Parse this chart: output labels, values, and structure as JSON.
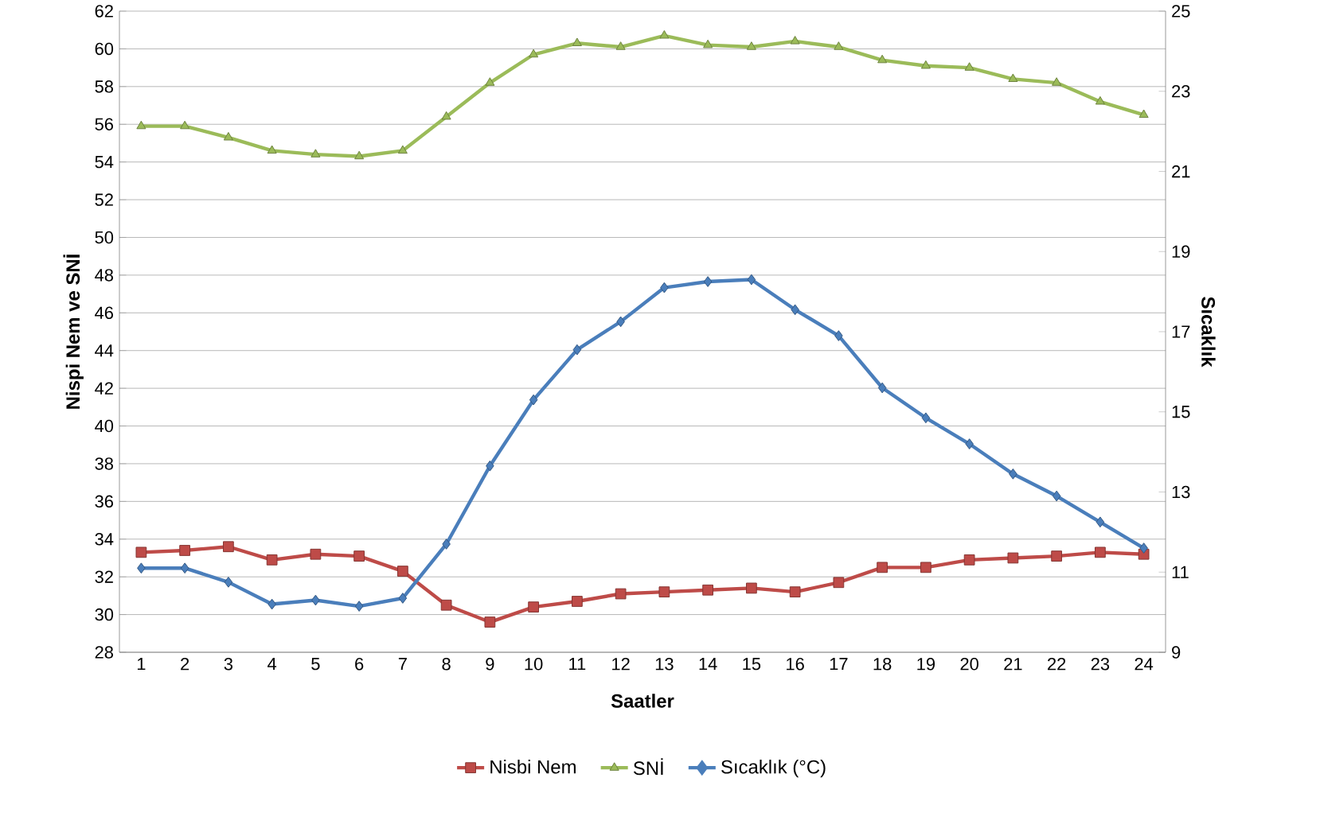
{
  "chart_data": {
    "type": "line",
    "xlabel": "Saatler",
    "ylabel": "Nispi Nem ve SNİ",
    "y2label": "Sıcaklık",
    "categories": [
      "1",
      "2",
      "3",
      "4",
      "5",
      "6",
      "7",
      "8",
      "9",
      "10",
      "11",
      "12",
      "13",
      "14",
      "15",
      "16",
      "17",
      "18",
      "19",
      "20",
      "21",
      "22",
      "23",
      "24"
    ],
    "ylim": [
      28,
      62
    ],
    "yticks": [
      28,
      30,
      32,
      34,
      36,
      38,
      40,
      42,
      44,
      46,
      48,
      50,
      52,
      54,
      56,
      58,
      60,
      62
    ],
    "y2lim": [
      9,
      25
    ],
    "y2ticks": [
      9,
      11,
      13,
      15,
      17,
      19,
      21,
      23,
      25
    ],
    "grid": "y",
    "legend": "bottom",
    "series": [
      {
        "name": "Nisbi Nem",
        "color": "#be4b48",
        "marker": "square",
        "values": [
          33.3,
          33.4,
          33.6,
          32.9,
          33.2,
          33.1,
          32.3,
          30.5,
          29.6,
          30.4,
          30.7,
          31.1,
          31.2,
          31.3,
          31.4,
          31.2,
          31.7,
          32.5,
          32.5,
          32.9,
          33.0,
          33.1,
          33.3,
          33.2
        ]
      },
      {
        "name": "SNİ",
        "color": "#9bbb59",
        "marker": "triangle",
        "values": [
          55.9,
          55.9,
          55.3,
          54.6,
          54.4,
          54.3,
          54.6,
          56.4,
          58.2,
          59.7,
          60.3,
          60.1,
          60.7,
          60.2,
          60.1,
          60.4,
          60.1,
          59.4,
          59.1,
          59.0,
          58.4,
          58.2,
          57.2,
          56.5
        ]
      },
      {
        "name": "Sıcaklık (°C)",
        "color": "#4a7ebb",
        "marker": "diamond",
        "axis": "y2",
        "values": [
          11.1,
          11.1,
          10.75,
          10.2,
          10.3,
          10.15,
          10.35,
          11.7,
          13.65,
          15.3,
          16.55,
          17.25,
          18.1,
          18.25,
          18.3,
          17.55,
          16.9,
          15.6,
          14.85,
          14.2,
          13.45,
          12.9,
          12.25,
          11.6
        ]
      }
    ]
  }
}
